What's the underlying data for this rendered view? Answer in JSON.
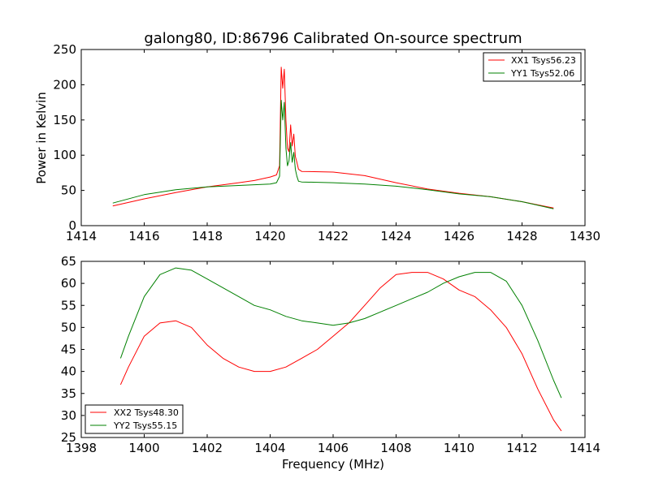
{
  "chart_data": [
    {
      "type": "line",
      "title": "galong80, ID:86796 Calibrated On-source spectrum",
      "xlabel": "",
      "ylabel": "Power in Kelvin",
      "xlim": [
        1414,
        1430
      ],
      "ylim": [
        0,
        250
      ],
      "xticks": [
        "1414",
        "1416",
        "1418",
        "1420",
        "1422",
        "1424",
        "1426",
        "1428",
        "1430"
      ],
      "yticks": [
        "0",
        "50",
        "100",
        "150",
        "200",
        "250"
      ],
      "legend_position": "top-right",
      "series": [
        {
          "name": "XX1 Tsys56.23",
          "color": "#ff0000",
          "points": [
            [
              1415,
              28
            ],
            [
              1416,
              38
            ],
            [
              1417,
              47
            ],
            [
              1418,
              55
            ],
            [
              1419,
              61
            ],
            [
              1419.5,
              64
            ],
            [
              1420,
              69
            ],
            [
              1420.2,
              72
            ],
            [
              1420.3,
              85
            ],
            [
              1420.35,
              225
            ],
            [
              1420.4,
              195
            ],
            [
              1420.45,
              222
            ],
            [
              1420.5,
              150
            ],
            [
              1420.55,
              110
            ],
            [
              1420.6,
              105
            ],
            [
              1420.65,
              143
            ],
            [
              1420.7,
              113
            ],
            [
              1420.75,
              130
            ],
            [
              1420.8,
              98
            ],
            [
              1420.85,
              90
            ],
            [
              1420.9,
              80
            ],
            [
              1421,
              77
            ],
            [
              1422,
              76
            ],
            [
              1423,
              71
            ],
            [
              1424,
              61
            ],
            [
              1425,
              52
            ],
            [
              1426,
              46
            ],
            [
              1427,
              41
            ],
            [
              1428,
              34
            ],
            [
              1429,
              25
            ]
          ]
        },
        {
          "name": "YY1 Tsys52.06",
          "color": "#008000",
          "points": [
            [
              1415,
              32
            ],
            [
              1416,
              44
            ],
            [
              1417,
              51
            ],
            [
              1418,
              55
            ],
            [
              1419,
              57
            ],
            [
              1420,
              59
            ],
            [
              1420.2,
              61
            ],
            [
              1420.3,
              70
            ],
            [
              1420.35,
              178
            ],
            [
              1420.4,
              150
            ],
            [
              1420.45,
              175
            ],
            [
              1420.5,
              110
            ],
            [
              1420.55,
              85
            ],
            [
              1420.6,
              92
            ],
            [
              1420.65,
              118
            ],
            [
              1420.7,
              90
            ],
            [
              1420.75,
              104
            ],
            [
              1420.8,
              80
            ],
            [
              1420.85,
              70
            ],
            [
              1420.9,
              63
            ],
            [
              1421,
              62
            ],
            [
              1422,
              61
            ],
            [
              1423,
              59
            ],
            [
              1424,
              56
            ],
            [
              1425,
              51
            ],
            [
              1426,
              45
            ],
            [
              1427,
              41
            ],
            [
              1428,
              34
            ],
            [
              1429,
              24
            ]
          ]
        }
      ]
    },
    {
      "type": "line",
      "title": "",
      "xlabel": "Frequency (MHz)",
      "ylabel": "",
      "xlim": [
        1398,
        1414
      ],
      "ylim": [
        25,
        65
      ],
      "xticks": [
        "1398",
        "1400",
        "1402",
        "1404",
        "1406",
        "1408",
        "1410",
        "1412",
        "1414"
      ],
      "yticks": [
        "25",
        "30",
        "35",
        "40",
        "45",
        "50",
        "55",
        "60",
        "65"
      ],
      "legend_position": "bottom-left",
      "series": [
        {
          "name": "XX2 Tsys48.30",
          "color": "#ff0000",
          "points": [
            [
              1399.25,
              37
            ],
            [
              1399.5,
              41
            ],
            [
              1400,
              48
            ],
            [
              1400.5,
              51
            ],
            [
              1401,
              51.5
            ],
            [
              1401.5,
              50
            ],
            [
              1402,
              46
            ],
            [
              1402.5,
              43
            ],
            [
              1403,
              41
            ],
            [
              1403.5,
              40
            ],
            [
              1404,
              40
            ],
            [
              1404.5,
              41
            ],
            [
              1405,
              43
            ],
            [
              1405.5,
              45
            ],
            [
              1406,
              48
            ],
            [
              1406.5,
              51
            ],
            [
              1407,
              55
            ],
            [
              1407.5,
              59
            ],
            [
              1408,
              62
            ],
            [
              1408.5,
              62.5
            ],
            [
              1409,
              62.5
            ],
            [
              1409.5,
              61
            ],
            [
              1410,
              58.5
            ],
            [
              1410.5,
              57
            ],
            [
              1411,
              54
            ],
            [
              1411.5,
              50
            ],
            [
              1412,
              44
            ],
            [
              1412.5,
              36
            ],
            [
              1413,
              29
            ],
            [
              1413.25,
              26.5
            ]
          ]
        },
        {
          "name": "YY2 Tsys55.15",
          "color": "#008000",
          "points": [
            [
              1399.25,
              43
            ],
            [
              1399.5,
              48
            ],
            [
              1400,
              57
            ],
            [
              1400.5,
              62
            ],
            [
              1401,
              63.5
            ],
            [
              1401.5,
              63
            ],
            [
              1402,
              61
            ],
            [
              1402.5,
              59
            ],
            [
              1403,
              57
            ],
            [
              1403.5,
              55
            ],
            [
              1404,
              54
            ],
            [
              1404.5,
              52.5
            ],
            [
              1405,
              51.5
            ],
            [
              1405.5,
              51
            ],
            [
              1406,
              50.5
            ],
            [
              1406.5,
              51
            ],
            [
              1407,
              52
            ],
            [
              1407.5,
              53.5
            ],
            [
              1408,
              55
            ],
            [
              1408.5,
              56.5
            ],
            [
              1409,
              58
            ],
            [
              1409.5,
              60
            ],
            [
              1410,
              61.5
            ],
            [
              1410.5,
              62.5
            ],
            [
              1411,
              62.5
            ],
            [
              1411.5,
              60.5
            ],
            [
              1412,
              55
            ],
            [
              1412.5,
              47
            ],
            [
              1413,
              38
            ],
            [
              1413.25,
              34
            ]
          ]
        }
      ]
    }
  ]
}
